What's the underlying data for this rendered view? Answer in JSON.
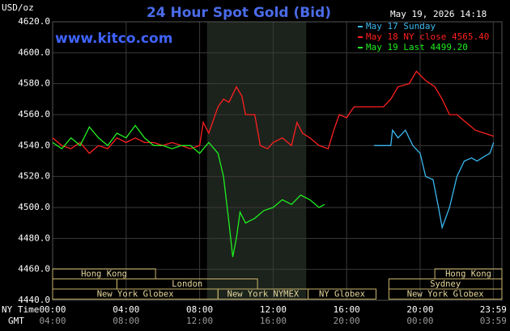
{
  "chart_data": {
    "type": "line",
    "title": "24 Hour Spot Gold (Bid)",
    "site": "www.kitco.com",
    "unit": "USD/oz",
    "timestamp": "May 19, 2026 14:18",
    "x_label": "NY Time",
    "x2_label": "GMT",
    "xlim": [
      0,
      24.45
    ],
    "xticks": [
      {
        "value": 0,
        "label": "00:00"
      },
      {
        "value": 4,
        "label": "04:00"
      },
      {
        "value": 8,
        "label": "08:00"
      },
      {
        "value": 12,
        "label": "12:00"
      },
      {
        "value": 16,
        "label": "16:00"
      },
      {
        "value": 20,
        "label": "20:00"
      },
      {
        "value": 23.98,
        "label": "23:59"
      }
    ],
    "x2ticks": [
      "04:00",
      "08:00",
      "12:00",
      "16:00",
      "20:00",
      "00:00",
      "03:59"
    ],
    "ylim": [
      4440,
      4620
    ],
    "yticks": [
      {
        "value": 4440,
        "label": "4440.0"
      },
      {
        "value": 4460,
        "label": "4460.0"
      },
      {
        "value": 4480,
        "label": "4480.0"
      },
      {
        "value": 4500,
        "label": "4500.0"
      },
      {
        "value": 4520,
        "label": "4520.0"
      },
      {
        "value": 4540,
        "label": "4540.0"
      },
      {
        "value": 4560,
        "label": "4560.0"
      },
      {
        "value": 4580,
        "label": "4580.0"
      },
      {
        "value": 4600,
        "label": "4600.0"
      },
      {
        "value": 4620,
        "label": "4620.0"
      }
    ],
    "grid": true,
    "highlight_x": [
      8.4,
      13.8
    ],
    "series": [
      {
        "name": "May 17 Sunday",
        "color": "#3ab8f0",
        "x": [
          17.5,
          18.4,
          18.5,
          18.8,
          19.2,
          19.6,
          20.0,
          20.3,
          20.7,
          21.0,
          21.2,
          21.6,
          22.0,
          22.4,
          22.8,
          23.1,
          23.5,
          23.8,
          24.0
        ],
        "values": [
          4540,
          4540,
          4550,
          4545,
          4550,
          4540,
          4535,
          4520,
          4518,
          4500,
          4487,
          4500,
          4520,
          4530,
          4532,
          4530,
          4533,
          4535,
          4542
        ]
      },
      {
        "name": "May 18 NY close 4565.40",
        "color": "#ff2020",
        "x": [
          0,
          0.5,
          1,
          1.5,
          2,
          2.5,
          3,
          3.5,
          4,
          4.5,
          5,
          5.5,
          6,
          6.5,
          7,
          7.5,
          8,
          8.2,
          8.5,
          9,
          9.3,
          9.6,
          10,
          10.3,
          10.5,
          11,
          11.3,
          11.7,
          12,
          12.5,
          13,
          13.3,
          13.6,
          14,
          14.5,
          15,
          15.3,
          15.6,
          16,
          16.4,
          17,
          17.5,
          18,
          18.4,
          18.8,
          19.4,
          19.8,
          20.3,
          20.8,
          21.2,
          21.6,
          22,
          22.5,
          23,
          23.5,
          24
        ],
        "values": [
          4545,
          4540,
          4538,
          4542,
          4535,
          4540,
          4538,
          4545,
          4542,
          4545,
          4542,
          4542,
          4540,
          4542,
          4540,
          4538,
          4540,
          4555,
          4548,
          4565,
          4570,
          4568,
          4578,
          4572,
          4560,
          4560,
          4540,
          4538,
          4542,
          4545,
          4540,
          4555,
          4548,
          4545,
          4540,
          4538,
          4550,
          4560,
          4558,
          4565,
          4565,
          4565,
          4565,
          4570,
          4578,
          4580,
          4588,
          4582,
          4578,
          4570,
          4560,
          4560,
          4555,
          4550,
          4548,
          4546
        ]
      },
      {
        "name": "May 19 Last 4499.20",
        "color": "#20ee20",
        "x": [
          0,
          0.5,
          1,
          1.5,
          2,
          2.5,
          3,
          3.5,
          4,
          4.5,
          5,
          5.5,
          6,
          6.5,
          7,
          7.5,
          8,
          8.5,
          9,
          9.3,
          9.6,
          9.8,
          10,
          10.2,
          10.5,
          11,
          11.5,
          12,
          12.5,
          13,
          13.5,
          14,
          14.5,
          14.8
        ],
        "values": [
          4542,
          4538,
          4545,
          4540,
          4552,
          4545,
          4540,
          4548,
          4545,
          4553,
          4545,
          4540,
          4540,
          4538,
          4540,
          4540,
          4535,
          4542,
          4535,
          4520,
          4490,
          4468,
          4480,
          4497,
          4490,
          4493,
          4498,
          4500,
          4505,
          4502,
          4508,
          4505,
          4500,
          4502
        ]
      }
    ],
    "sessions": [
      {
        "name": "Hong Kong",
        "row": 0,
        "x": [
          0,
          5.6
        ]
      },
      {
        "name": null,
        "row": 1,
        "x": [
          0,
          3.5
        ]
      },
      {
        "name": "London",
        "row": 1,
        "x": [
          3.5,
          11.15
        ]
      },
      {
        "name": "New York Globex",
        "row": 2,
        "x": [
          0,
          9.0
        ]
      },
      {
        "name": "New York NYMEX",
        "row": 2,
        "x": [
          9.0,
          13.9
        ]
      },
      {
        "name": "NY Globex",
        "row": 2,
        "x": [
          13.9,
          17.6
        ]
      },
      {
        "name": "Hong Kong",
        "row": 0,
        "x": [
          20.8,
          24.45
        ]
      },
      {
        "name": "Sydney",
        "row": 1,
        "x": [
          18.3,
          24.45
        ]
      },
      {
        "name": "New York Globex",
        "row": 2,
        "x": [
          18.3,
          24.45
        ]
      }
    ]
  }
}
